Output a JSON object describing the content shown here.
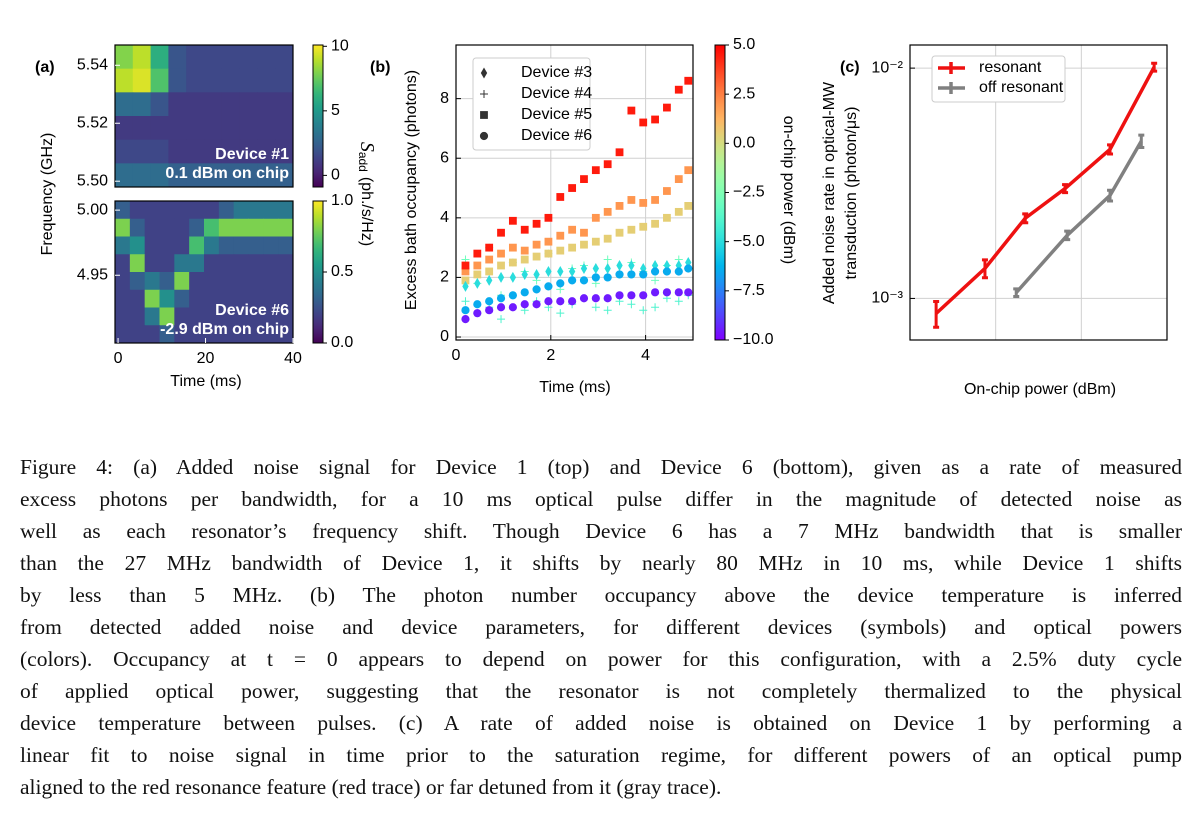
{
  "chart_data": [
    {
      "type": "heatmap",
      "panel_label": "(a)",
      "ylabel": "Frequency (GHz)",
      "colorbar_label": {
        "symbol": "S",
        "subscript": "add",
        "unit": "(ph./s/Hz)"
      },
      "annotations": [
        "Device #1",
        "0.1 dBm on chip"
      ],
      "colormap": "viridis",
      "xlim": [
        -0.7,
        40
      ],
      "ylim": [
        5.498,
        5.547
      ],
      "yticks": [
        5.54,
        5.52,
        {
          "value": 5.5,
          "label": "5.50"
        }
      ],
      "clim": [
        -0.9,
        10.1
      ],
      "cticks": [
        0,
        5,
        10
      ],
      "z": [
        [
          8,
          9,
          6,
          2,
          1.5,
          1.5,
          1.5,
          1.5,
          1.5,
          1.5
        ],
        [
          9,
          9.5,
          7,
          2,
          1.5,
          1.5,
          1.5,
          1.5,
          1.5,
          1.5
        ],
        [
          3,
          3,
          2,
          1,
          1,
          1,
          1,
          1,
          1,
          1
        ],
        [
          1,
          1,
          1,
          1,
          1,
          1,
          1,
          1,
          1,
          1
        ],
        [
          1.5,
          1.5,
          1.5,
          1,
          1,
          1,
          1,
          1,
          1,
          1
        ],
        [
          3,
          3,
          3,
          2.5,
          2.5,
          2.5,
          2.5,
          2.5,
          2.5,
          2.5
        ]
      ]
    },
    {
      "type": "heatmap",
      "xlabel": "Time (ms)",
      "annotations": [
        "Device #6",
        "-2.9 dBm on chip"
      ],
      "colormap": "viridis",
      "xlim": [
        -0.7,
        40
      ],
      "ylim": [
        4.898,
        5.007
      ],
      "xticks": [
        0,
        20,
        40
      ],
      "yticks": [
        {
          "value": 5,
          "label": "5.00"
        },
        4.95
      ],
      "clim": [
        0,
        1
      ],
      "cticks": [
        {
          "value": 0,
          "label": "0.0"
        },
        0.5,
        {
          "value": 1,
          "label": "1.0"
        }
      ],
      "z": [
        [
          0.3,
          0.2,
          0.2,
          0.2,
          0.2,
          0.2,
          0.2,
          0.3,
          0.4,
          0.4,
          0.4,
          0.4
        ],
        [
          0.8,
          0.3,
          0.2,
          0.2,
          0.2,
          0.3,
          0.7,
          0.8,
          0.8,
          0.8,
          0.8,
          0.8
        ],
        [
          0.4,
          0.5,
          0.2,
          0.2,
          0.2,
          0.7,
          0.4,
          0.3,
          0.3,
          0.3,
          0.3,
          0.3
        ],
        [
          0.2,
          0.8,
          0.2,
          0.2,
          0.4,
          0.4,
          0.2,
          0.2,
          0.2,
          0.2,
          0.2,
          0.2
        ],
        [
          0.2,
          0.3,
          0.4,
          0.3,
          0.8,
          0.2,
          0.2,
          0.2,
          0.2,
          0.2,
          0.2,
          0.2
        ],
        [
          0.2,
          0.2,
          0.8,
          0.5,
          0.3,
          0.2,
          0.2,
          0.2,
          0.2,
          0.2,
          0.2,
          0.2
        ],
        [
          0.2,
          0.2,
          0.4,
          0.8,
          0.2,
          0.2,
          0.2,
          0.2,
          0.2,
          0.2,
          0.2,
          0.2
        ],
        [
          0.2,
          0.2,
          0.2,
          0.3,
          0.2,
          0.2,
          0.2,
          0.2,
          0.2,
          0.2,
          0.2,
          0.2
        ]
      ]
    },
    {
      "type": "scatter",
      "panel_label": "(b)",
      "xlabel": "Time (ms)",
      "ylabel": "Excess bath occupancy (photons)",
      "colorbar_label": "on-chip power (dBm)",
      "colormap": "rainbow",
      "grid": true,
      "xlim": [
        0,
        5
      ],
      "ylim": [
        -0.1,
        9.8
      ],
      "xticks": [
        0,
        2,
        4
      ],
      "yticks": [
        0,
        2,
        4,
        6,
        8
      ],
      "clim": [
        -10,
        5
      ],
      "cticks": [
        {
          "value": 5,
          "label": "5.0"
        },
        2.5,
        {
          "value": 0,
          "label": "0.0"
        },
        {
          "value": -2.5,
          "label": "−2.5"
        },
        {
          "value": -5,
          "label": "−5.0"
        },
        {
          "value": -7.5,
          "label": "−7.5"
        },
        {
          "value": -10,
          "label": "−10.0"
        }
      ],
      "legend": {
        "loc": "upper left",
        "entries": [
          {
            "label": "Device #3",
            "marker": "diamond"
          },
          {
            "label": "Device #4",
            "marker": "plus"
          },
          {
            "label": "Device #5",
            "marker": "square"
          },
          {
            "label": "Device #6",
            "marker": "circle"
          }
        ]
      },
      "x": [
        0.2,
        0.45,
        0.7,
        0.95,
        1.2,
        1.45,
        1.7,
        1.95,
        2.2,
        2.45,
        2.7,
        2.95,
        3.2,
        3.45,
        3.7,
        3.95,
        4.2,
        4.45,
        4.7,
        4.9
      ],
      "series": [
        {
          "marker": "plus",
          "power": -4,
          "values": [
            1.2,
            0.8,
            1.0,
            0.6,
            1.4,
            0.9,
            1.2,
            1.0,
            0.8,
            1.1,
            1.3,
            1.0,
            0.9,
            1.2,
            1.1,
            0.9,
            1.0,
            1.3,
            1.2,
            1.4
          ]
        },
        {
          "marker": "plus",
          "power": -3,
          "values": [
            2.6,
            1.8,
            3.0,
            1.4,
            2.5,
            2.2,
            1.9,
            2.8,
            1.6,
            2.3,
            2.4,
            1.8,
            2.6,
            2.1,
            2.5,
            2.2,
            1.9,
            2.4,
            2.6,
            2.3
          ]
        },
        {
          "marker": "square",
          "power": 0.5,
          "values": [
            1.9,
            2.1,
            2.2,
            2.4,
            2.5,
            2.6,
            2.7,
            2.8,
            2.9,
            3.0,
            3.1,
            3.2,
            3.3,
            3.5,
            3.6,
            3.7,
            3.8,
            4.0,
            4.2,
            4.4
          ]
        },
        {
          "marker": "square",
          "power": 2,
          "values": [
            2.2,
            2.4,
            2.6,
            2.8,
            3.0,
            2.9,
            3.1,
            3.2,
            3.4,
            3.6,
            3.5,
            4.0,
            4.2,
            4.4,
            4.6,
            4.5,
            4.6,
            4.9,
            5.3,
            5.6
          ]
        },
        {
          "marker": "square",
          "power": 4.5,
          "values": [
            2.4,
            2.8,
            3.0,
            3.5,
            3.9,
            3.6,
            3.8,
            4.0,
            4.7,
            5.0,
            5.3,
            5.6,
            5.8,
            6.2,
            7.6,
            7.2,
            7.3,
            7.7,
            8.3,
            8.6
          ]
        },
        {
          "marker": "diamond",
          "power": -5,
          "values": [
            1.7,
            1.8,
            1.9,
            2.0,
            2.0,
            2.1,
            2.1,
            2.2,
            2.2,
            2.2,
            2.3,
            2.3,
            2.3,
            2.4,
            2.4,
            2.3,
            2.4,
            2.4,
            2.4,
            2.5
          ]
        },
        {
          "marker": "circle",
          "power": -6.5,
          "values": [
            0.9,
            1.1,
            1.2,
            1.3,
            1.4,
            1.5,
            1.6,
            1.7,
            1.8,
            1.9,
            1.9,
            2.0,
            2.0,
            2.1,
            2.1,
            2.1,
            2.2,
            2.2,
            2.2,
            2.3
          ]
        },
        {
          "marker": "circle",
          "power": -9.5,
          "values": [
            0.6,
            0.8,
            0.9,
            1.0,
            1.0,
            1.1,
            1.1,
            1.2,
            1.2,
            1.2,
            1.3,
            1.3,
            1.3,
            1.4,
            1.4,
            1.4,
            1.5,
            1.5,
            1.5,
            1.5
          ]
        }
      ]
    },
    {
      "type": "line",
      "panel_label": "(c)",
      "xlabel": "On-chip power (dBm)",
      "ylabel": [
        "Added noise rate in optical-MW",
        "transduction (photon/μs)"
      ],
      "ylog": true,
      "grid": true,
      "legend": "upper left",
      "xlim": [
        -2,
        4
      ],
      "xgrid": [
        0,
        2
      ],
      "ylim": [
        0.00066,
        0.0126
      ],
      "yticks": [
        {
          "value": 0.001,
          "label": "10⁻³"
        },
        {
          "value": 0.01,
          "label": "10⁻²"
        }
      ],
      "series": [
        {
          "name": "resonant",
          "color": "#ee1111",
          "x": [
            -1.39,
            -0.25,
            0.69,
            1.62,
            2.67,
            3.7
          ],
          "values": [
            0.00086,
            0.00135,
            0.00223,
            0.003,
            0.00444,
            0.0101
          ],
          "errors": [
            0.00011,
            0.00012,
            0.0001,
            0.00012,
            0.0002,
            0.0004
          ]
        },
        {
          "name": "off resonant",
          "color": "#808080",
          "x": [
            0.48,
            1.67,
            2.67,
            3.4
          ],
          "values": [
            0.00106,
            0.00188,
            0.0028,
            0.00482
          ],
          "errors": [
            4e-05,
            8e-05,
            0.00015,
            0.0003
          ]
        }
      ]
    }
  ],
  "caption": {
    "lines": [
      "Figure 4:  (a) Added noise signal for Device 1 (top) and Device 6 (bottom), given as a rate of measured",
      "excess photons per bandwidth, for a 10 ms optical pulse differ in the magnitude of detected noise as",
      "well as each resonator’s frequency shift.  Though Device 6 has a 7 MHz bandwidth that is smaller",
      "than the 27 MHz bandwidth of Device 1, it shifts by nearly 80 MHz in 10 ms, while Device 1 shifts",
      "by less than 5 MHz.  (b) The photon number occupancy above the device temperature is inferred",
      "from detected added noise and device parameters, for different devices (symbols) and optical powers",
      "(colors). Occupancy at t = 0 appears to depend on power for this configuration, with a 2.5% duty cycle",
      "of applied optical power, suggesting that the resonator is not completely thermalized to the physical",
      "device temperature between pulses. (c) A rate of added noise is obtained on Device 1 by performing a",
      "linear fit to noise signal in time prior to the saturation regime, for different powers of an optical pump",
      "aligned to the red resonance feature (red trace) or far detuned from it (gray trace)."
    ]
  }
}
